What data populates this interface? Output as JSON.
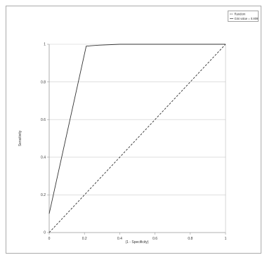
{
  "chart_data": {
    "type": "line",
    "xlabel": "(1 - Specificity)",
    "ylabel": "Sensitivity",
    "xlim": [
      0,
      1
    ],
    "ylim": [
      0,
      1
    ],
    "xticks": [
      "0",
      "0.2",
      "0.4",
      "0.6",
      "0.8",
      "1"
    ],
    "yticks": [
      "0",
      "0.2",
      "0.4",
      "0.6",
      "0.8",
      "1"
    ],
    "grid": "horizontal",
    "legend_position": "top-right",
    "series": [
      {
        "name": "Random",
        "style": "dashed",
        "x": [
          0,
          1
        ],
        "y": [
          0,
          1
        ]
      },
      {
        "name": "Gini value = 0.809",
        "style": "solid",
        "x": [
          0,
          0.21,
          0.28,
          0.4,
          1
        ],
        "y": [
          0.1,
          0.99,
          0.995,
          1,
          1
        ]
      }
    ],
    "colors": {
      "line": "#333333",
      "grid": "#cccccc",
      "frame": "#999999"
    }
  }
}
